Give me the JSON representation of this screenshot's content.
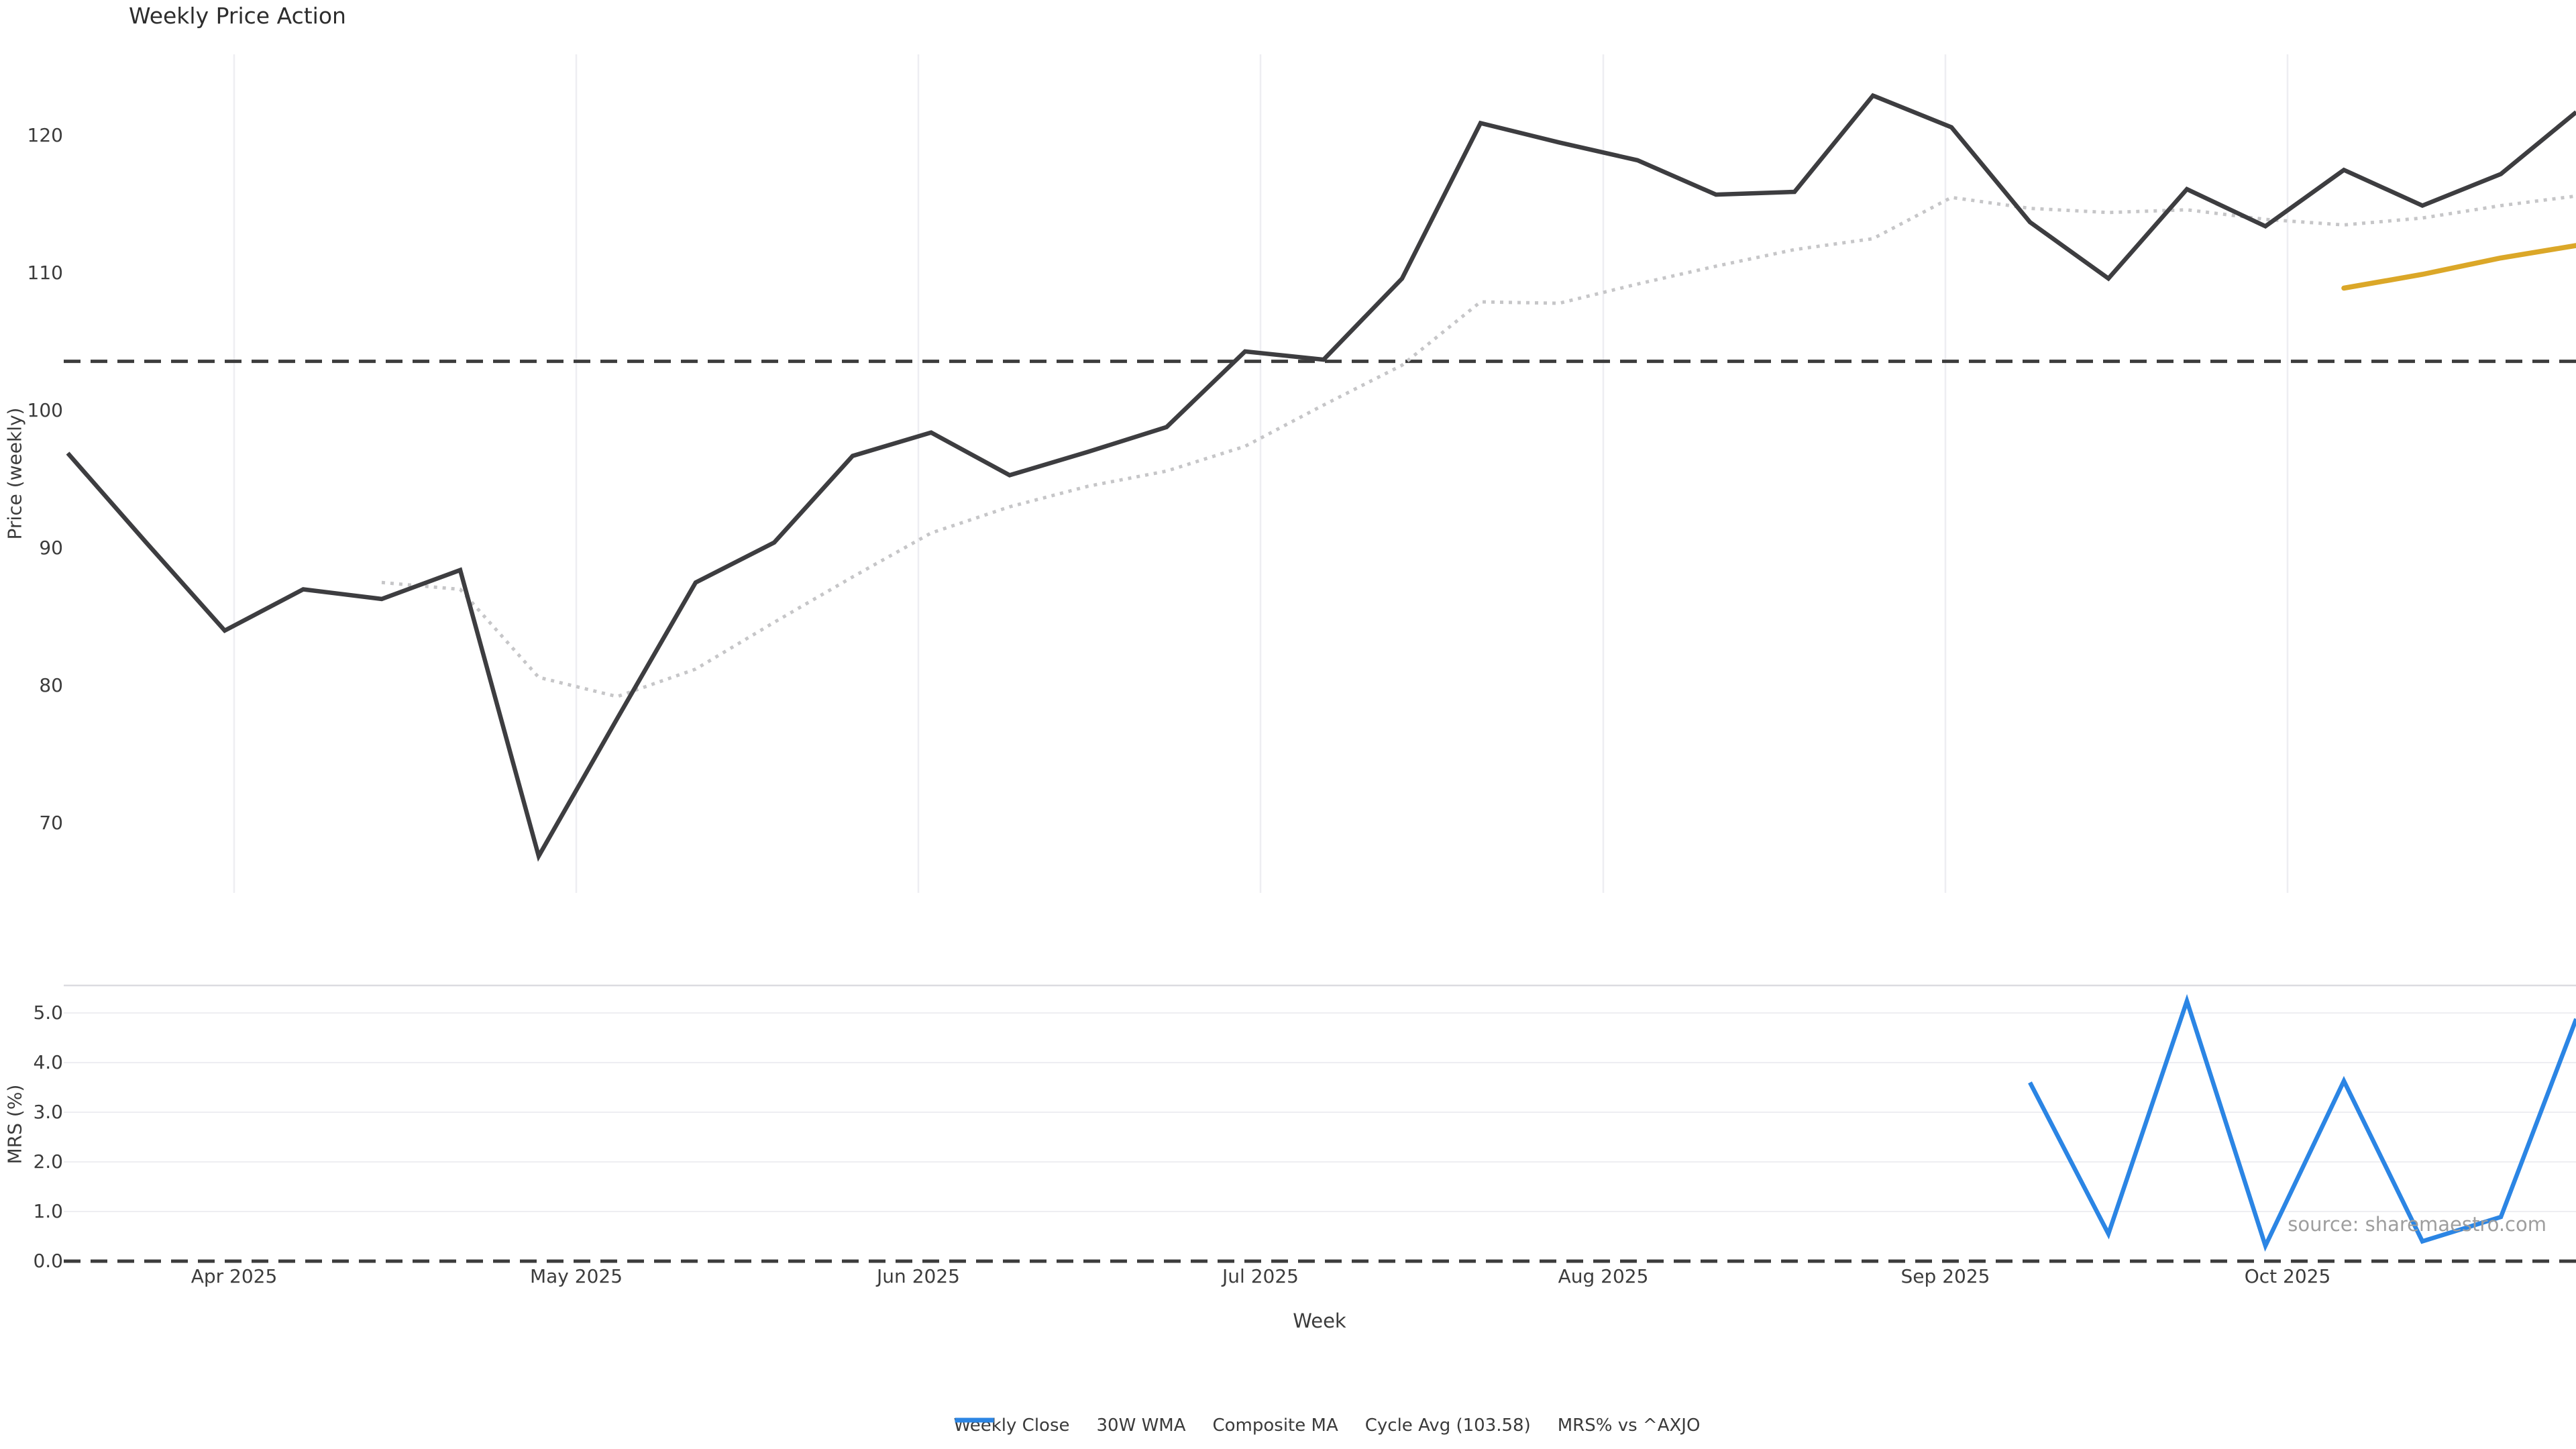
{
  "title": "Weekly Price Action",
  "watermark": "source: sharemaestro.com",
  "price_panel": {
    "ylabel": "Price (weekly)",
    "yticks": [
      {
        "label": "120",
        "value": 120
      },
      {
        "label": "110",
        "value": 110
      },
      {
        "label": "100",
        "value": 100
      },
      {
        "label": "90",
        "value": 90
      },
      {
        "label": "80",
        "value": 80
      },
      {
        "label": "70",
        "value": 70
      }
    ]
  },
  "mrs_panel": {
    "ylabel": "MRS (%)",
    "xlabel": "Week",
    "yticks": [
      {
        "label": "5.0",
        "value": 5
      },
      {
        "label": "4.0",
        "value": 4
      },
      {
        "label": "3.0",
        "value": 3
      },
      {
        "label": "2.0",
        "value": 2
      },
      {
        "label": "1.0",
        "value": 1
      },
      {
        "label": "0.0",
        "value": 0
      }
    ]
  },
  "x_axis": {
    "month_labels": [
      "Apr 2025",
      "May 2025",
      "Jun 2025",
      "Jul 2025",
      "Aug 2025",
      "Sep 2025",
      "Oct 2025"
    ]
  },
  "legend": {
    "items": [
      {
        "label": "Weekly Close",
        "series": "weekly_close",
        "style": "solid"
      },
      {
        "label": "30W WMA",
        "series": "wma_30w",
        "style": "solid"
      },
      {
        "label": "Composite MA",
        "series": "composite_ma",
        "style": "dotted"
      },
      {
        "label": "Cycle Avg (103.58)",
        "series": "cycle_avg",
        "style": "dashed"
      },
      {
        "label": "MRS% vs ^AXJO",
        "series": "mrs",
        "style": "solid"
      }
    ]
  },
  "colors": {
    "weekly_close": "#3d3d40",
    "wma_30w": "#dba728",
    "composite_ma": "#c6c6c8",
    "cycle_avg": "#3c3c3c",
    "mrs": "#2b85e4",
    "grid": "#eeeef2",
    "panel_border": "#dcdce0",
    "tick_text": "#3c3c3c",
    "watermark": "#9e9e9e",
    "background": "#ffffff"
  },
  "chart_data": [
    {
      "type": "line",
      "title": "Weekly Price Action",
      "ylabel": "Price (weekly)",
      "xlabel": "Week",
      "x_unit": "week index, 0 = mid-March 2025, ~4.36 weeks per month",
      "x_tick_labels": [
        "Apr 2025",
        "May 2025",
        "Jun 2025",
        "Jul 2025",
        "Aug 2025",
        "Sep 2025",
        "Oct 2025"
      ],
      "ylim": [
        65,
        126
      ],
      "grid": "vertical month gridlines only",
      "legend_position": "bottom center, shared",
      "series": [
        {
          "name": "Weekly Close",
          "style": "solid",
          "points": [
            [
              0,
              96.9
            ],
            [
              1,
              90.4
            ],
            [
              2,
              84.0
            ],
            [
              3,
              87.0
            ],
            [
              4,
              86.3
            ],
            [
              5,
              88.4
            ],
            [
              6,
              67.6
            ],
            [
              7,
              77.6
            ],
            [
              8,
              87.5
            ],
            [
              9,
              90.4
            ],
            [
              10,
              96.7
            ],
            [
              11,
              98.4
            ],
            [
              12,
              95.3
            ],
            [
              13,
              97.0
            ],
            [
              14,
              98.8
            ],
            [
              15,
              104.3
            ],
            [
              16,
              103.7
            ],
            [
              17,
              109.6
            ],
            [
              18,
              120.9
            ],
            [
              19,
              119.5
            ],
            [
              20,
              118.2
            ],
            [
              21,
              115.7
            ],
            [
              22,
              115.9
            ],
            [
              23,
              122.9
            ],
            [
              24,
              120.6
            ],
            [
              25,
              113.7
            ],
            [
              26,
              109.6
            ],
            [
              27,
              116.1
            ],
            [
              28,
              113.4
            ],
            [
              29,
              117.5
            ],
            [
              30,
              114.9
            ],
            [
              31,
              117.2
            ],
            [
              31.96,
              121.7
            ]
          ]
        },
        {
          "name": "Composite MA",
          "style": "dotted",
          "points": [
            [
              4,
              87.5
            ],
            [
              5,
              87.0
            ],
            [
              6,
              80.6
            ],
            [
              7,
              79.2
            ],
            [
              8,
              81.2
            ],
            [
              9,
              84.6
            ],
            [
              10,
              87.9
            ],
            [
              11,
              91.1
            ],
            [
              12,
              93.0
            ],
            [
              13,
              94.5
            ],
            [
              14,
              95.6
            ],
            [
              15,
              97.4
            ],
            [
              16,
              100.4
            ],
            [
              17,
              103.3
            ],
            [
              18,
              107.9
            ],
            [
              19,
              107.8
            ],
            [
              20,
              109.2
            ],
            [
              21,
              110.5
            ],
            [
              22,
              111.7
            ],
            [
              23,
              112.5
            ],
            [
              24,
              115.5
            ],
            [
              25,
              114.7
            ],
            [
              26,
              114.4
            ],
            [
              27,
              114.6
            ],
            [
              28,
              113.9
            ],
            [
              29,
              113.5
            ],
            [
              30,
              114.0
            ],
            [
              31,
              114.9
            ],
            [
              31.96,
              115.6
            ]
          ]
        },
        {
          "name": "30W WMA",
          "style": "solid",
          "points": [
            [
              29,
              108.9
            ],
            [
              30,
              109.9
            ],
            [
              31,
              111.1
            ],
            [
              31.96,
              112.0
            ]
          ]
        },
        {
          "name": "Cycle Avg",
          "style": "dashed-horizontal",
          "value": 103.58
        }
      ]
    },
    {
      "type": "line",
      "ylabel": "MRS (%)",
      "xlabel": "Week",
      "x_unit": "week index shared with price panel",
      "ylim": [
        -0.3,
        5.55
      ],
      "grid": "horizontal gridlines at 1.0 steps",
      "series": [
        {
          "name": "MRS% vs ^AXJO",
          "style": "solid",
          "points": [
            [
              25,
              3.6
            ],
            [
              26,
              0.55
            ],
            [
              27,
              5.24
            ],
            [
              28,
              0.31
            ],
            [
              29,
              3.63
            ],
            [
              30,
              0.4
            ],
            [
              31,
              0.89
            ],
            [
              31.96,
              4.88
            ]
          ]
        },
        {
          "name": "Zero line",
          "style": "dashed-horizontal",
          "value": 0.0
        }
      ]
    }
  ]
}
